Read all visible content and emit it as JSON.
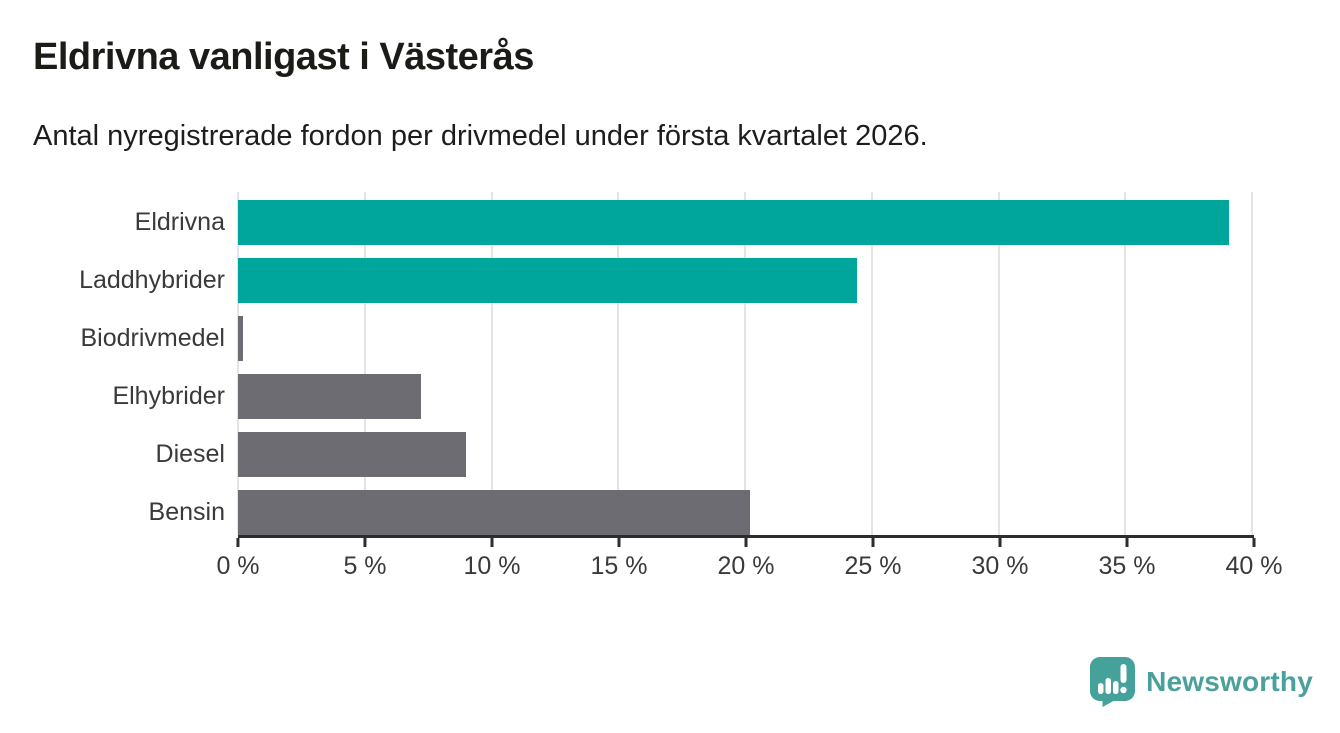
{
  "header": {
    "title": "Eldrivna vanligast i Västerås",
    "subtitle": "Antal nyregistrerade fordon per drivmedel under första kvartalet 2026."
  },
  "chart_data": {
    "type": "bar",
    "orientation": "horizontal",
    "title": "Eldrivna vanligast i Västerås",
    "subtitle": "Antal nyregistrerade fordon per drivmedel under första kvartalet 2026.",
    "categories": [
      "Eldrivna",
      "Laddhybrider",
      "Biodrivmedel",
      "Elhybrider",
      "Diesel",
      "Bensin"
    ],
    "values": [
      39.1,
      24.4,
      0.2,
      7.2,
      9.0,
      20.2
    ],
    "unit": "%",
    "bar_colors": [
      "#00a59b",
      "#00a59b",
      "#6d6c72",
      "#6d6c72",
      "#6d6c72",
      "#6d6c72"
    ],
    "xlim": [
      0,
      40
    ],
    "x_ticks": [
      0,
      5,
      10,
      15,
      20,
      25,
      30,
      35,
      40
    ],
    "x_tick_labels": [
      "0 %",
      "5 %",
      "10 %",
      "15 %",
      "20 %",
      "25 %",
      "30 %",
      "35 %",
      "40 %"
    ],
    "grid": "vertical-only",
    "legend": "none"
  },
  "footer": {
    "brand": "Newsworthy"
  },
  "colors": {
    "accent_teal": "#00a59b",
    "neutral_gray": "#6d6c72",
    "title_text": "#1b1b17",
    "label_text": "#3a3a3a",
    "axis_line": "#2d2d2d",
    "gridline": "#e4e4e6",
    "brand_teal": "#4aa19b",
    "background": "#ffffff"
  }
}
